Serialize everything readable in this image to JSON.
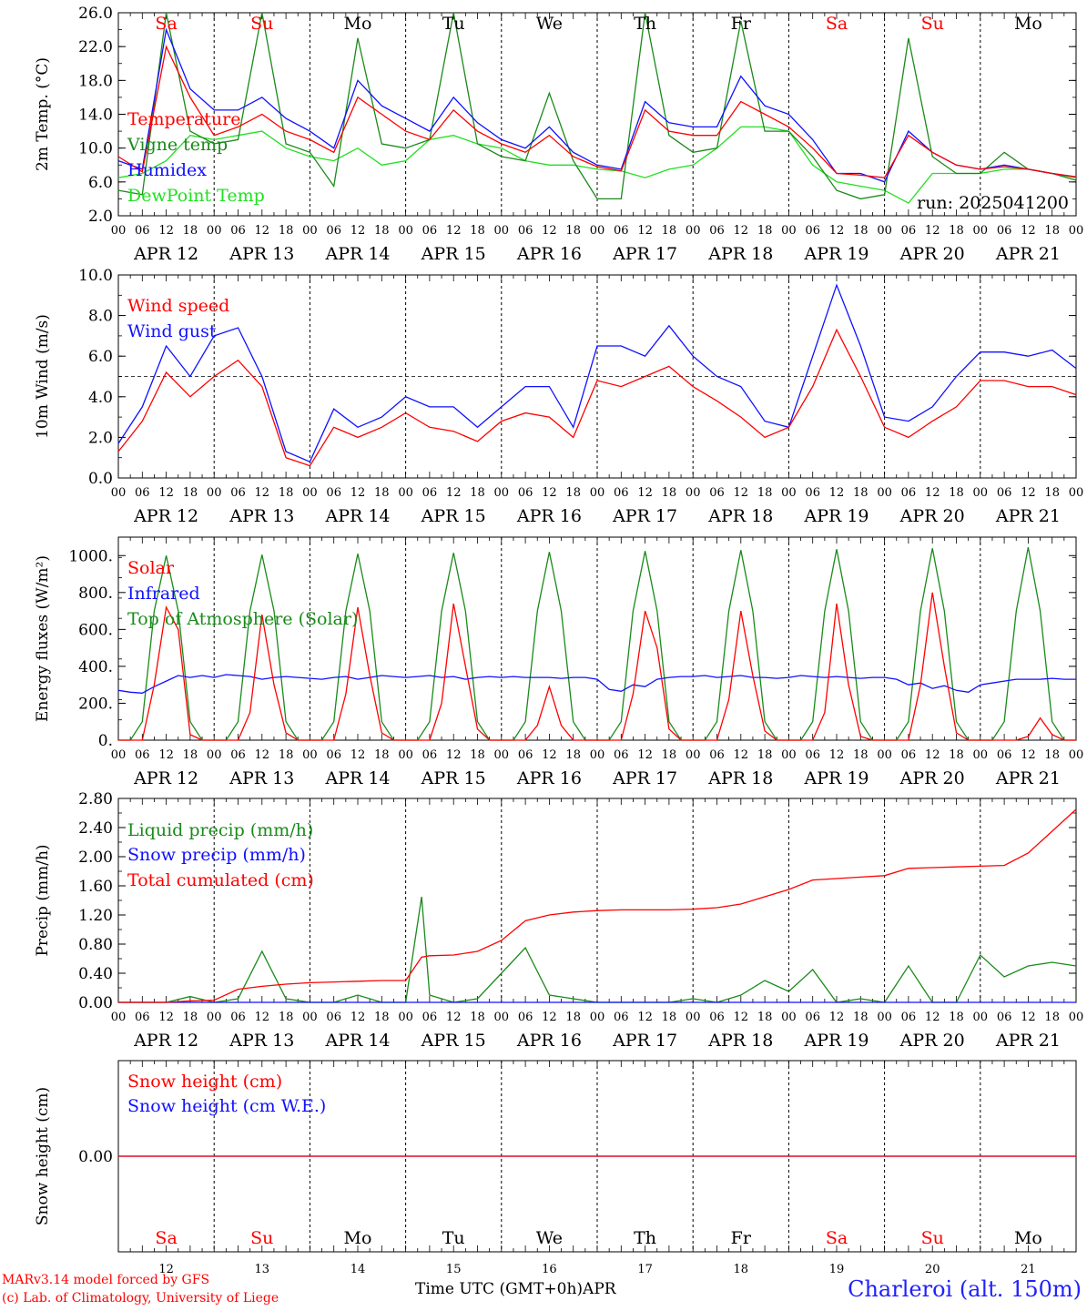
{
  "footer": {
    "model": "MARv3.14 model forced by GFS",
    "credit": "(c) Lab. of Climatology, University of Liege",
    "time_label": "Time UTC (GMT+0h)",
    "month": "APR",
    "station": "Charleroi (alt. 150m)"
  },
  "days": [
    {
      "abbr": "Sa",
      "date": "APR 12",
      "num": "12",
      "weekend": true
    },
    {
      "abbr": "Su",
      "date": "APR 13",
      "num": "13",
      "weekend": true
    },
    {
      "abbr": "Mo",
      "date": "APR 14",
      "num": "14",
      "weekend": false
    },
    {
      "abbr": "Tu",
      "date": "APR 15",
      "num": "15",
      "weekend": false
    },
    {
      "abbr": "We",
      "date": "APR 16",
      "num": "16",
      "weekend": false
    },
    {
      "abbr": "Th",
      "date": "APR 17",
      "num": "17",
      "weekend": false
    },
    {
      "abbr": "Fr",
      "date": "APR 18",
      "num": "18",
      "weekend": false
    },
    {
      "abbr": "Sa",
      "date": "APR 19",
      "num": "19",
      "weekend": true
    },
    {
      "abbr": "Su",
      "date": "APR 20",
      "num": "20",
      "weekend": true
    },
    {
      "abbr": "Mo",
      "date": "APR 21",
      "num": "21",
      "weekend": false
    }
  ],
  "hour_ticks": [
    "00",
    "06",
    "12",
    "18"
  ],
  "colors": {
    "red": "#ff0000",
    "blue": "#1010ff",
    "green": "#1a8a1a",
    "lime": "#20e020",
    "weekend": "#ff0000",
    "weekday": "#000000"
  },
  "chart_data": [
    {
      "type": "line",
      "ylabel": "2m Temp. (°C)",
      "ylim": [
        2,
        26
      ],
      "yticks": [
        "2.0",
        "6.0",
        "10.0",
        "14.0",
        "18.0",
        "22.0",
        "26.0"
      ],
      "annotation": "run: 2025041200",
      "x_hours": [
        0,
        6,
        12,
        18,
        24,
        30,
        36,
        42,
        48,
        54,
        60,
        66,
        72,
        78,
        84,
        90,
        96,
        102,
        108,
        114,
        120,
        126,
        132,
        138,
        144,
        150,
        156,
        162,
        168,
        174,
        180,
        186,
        192,
        198,
        204,
        210,
        216,
        222,
        228,
        234,
        240
      ],
      "series": [
        {
          "name": "Temperature",
          "color": "#ff0000",
          "values": [
            9.0,
            7.2,
            22.0,
            16.0,
            11.5,
            12.5,
            14.0,
            12.0,
            11.0,
            9.5,
            16.0,
            14.0,
            12.0,
            11.0,
            14.5,
            12.0,
            10.5,
            9.5,
            11.5,
            9.0,
            7.8,
            7.3,
            14.5,
            12.0,
            11.5,
            11.5,
            15.5,
            14.0,
            12.5,
            10.0,
            7.0,
            6.8,
            6.5,
            11.5,
            9.5,
            8.0,
            7.5,
            7.8,
            7.5,
            7.0,
            6.6
          ]
        },
        {
          "name": "Vigne temp",
          "color": "#1a8a1a",
          "values": [
            5.0,
            4.5,
            26.0,
            12.0,
            10.5,
            11.0,
            26.0,
            10.5,
            9.5,
            5.5,
            23.0,
            10.5,
            10.0,
            11.0,
            26.0,
            10.5,
            9.0,
            8.5,
            16.5,
            8.5,
            4.0,
            4.0,
            26.0,
            11.5,
            9.5,
            10.0,
            25.0,
            12.0,
            12.0,
            9.0,
            5.0,
            4.0,
            4.5,
            23.0,
            9.0,
            7.0,
            7.0,
            9.5,
            7.5,
            7.0,
            6.2
          ]
        },
        {
          "name": "Humidex",
          "color": "#1010ff",
          "values": [
            8.5,
            7.5,
            24.0,
            17.0,
            14.5,
            14.5,
            16.0,
            13.5,
            12.0,
            10.0,
            18.0,
            15.0,
            13.5,
            12.0,
            16.0,
            13.0,
            11.0,
            10.0,
            12.5,
            9.5,
            8.0,
            7.5,
            15.5,
            13.0,
            12.5,
            12.5,
            18.5,
            15.0,
            14.0,
            11.0,
            7.0,
            7.0,
            6.0,
            12.0,
            9.5,
            8.0,
            7.5,
            8.0,
            7.5,
            7.0,
            6.6
          ]
        },
        {
          "name": "DewPoint Temp",
          "color": "#20e020",
          "values": [
            6.5,
            7.0,
            8.5,
            11.5,
            11.0,
            11.5,
            12.0,
            10.0,
            9.0,
            8.5,
            10.0,
            8.0,
            8.5,
            11.0,
            11.5,
            10.5,
            10.0,
            8.5,
            8.0,
            8.0,
            7.5,
            7.3,
            6.5,
            7.5,
            8.0,
            10.0,
            12.5,
            12.5,
            12.0,
            8.0,
            6.0,
            5.5,
            5.0,
            3.5,
            7.0,
            7.0,
            7.0,
            7.5,
            7.5,
            7.0,
            6.5
          ]
        }
      ]
    },
    {
      "type": "line",
      "ylabel": "10m Wind (m/s)",
      "ylim": [
        0,
        10
      ],
      "yticks": [
        "0.0",
        "2.0",
        "4.0",
        "6.0",
        "8.0",
        "10.0"
      ],
      "reference_line": 5.0,
      "x_hours": [
        0,
        6,
        12,
        18,
        24,
        30,
        36,
        42,
        48,
        54,
        60,
        66,
        72,
        78,
        84,
        90,
        96,
        102,
        108,
        114,
        120,
        126,
        132,
        138,
        144,
        150,
        156,
        162,
        168,
        174,
        180,
        186,
        192,
        198,
        204,
        210,
        216,
        222,
        228,
        234,
        240
      ],
      "series": [
        {
          "name": "Wind speed",
          "color": "#ff0000",
          "values": [
            1.3,
            2.8,
            5.2,
            4.0,
            5.0,
            5.8,
            4.5,
            1.0,
            0.6,
            2.5,
            2.0,
            2.5,
            3.2,
            2.5,
            2.3,
            1.8,
            2.8,
            3.2,
            3.0,
            2.0,
            4.8,
            4.5,
            5.0,
            5.5,
            4.5,
            3.8,
            3.0,
            2.0,
            2.5,
            4.5,
            7.3,
            5.0,
            2.5,
            2.0,
            2.8,
            3.5,
            4.8,
            4.8,
            4.5,
            4.5,
            4.1
          ]
        },
        {
          "name": "Wind gust",
          "color": "#1010ff",
          "values": [
            1.7,
            3.5,
            6.5,
            5.0,
            7.0,
            7.4,
            5.0,
            1.3,
            0.8,
            3.4,
            2.5,
            3.0,
            4.0,
            3.5,
            3.5,
            2.5,
            3.5,
            4.5,
            4.5,
            2.5,
            6.5,
            6.5,
            6.0,
            7.5,
            6.0,
            5.0,
            4.5,
            2.8,
            2.5,
            6.0,
            9.5,
            6.5,
            3.0,
            2.8,
            3.5,
            5.0,
            6.2,
            6.2,
            6.0,
            6.3,
            5.4
          ]
        }
      ]
    },
    {
      "type": "line",
      "ylabel": "Energy fluxes (W/m²)",
      "ylim": [
        0,
        1100
      ],
      "yticks": [
        "0.",
        "200.",
        "400.",
        "600.",
        "800.",
        "1000."
      ],
      "x_hours": [
        0,
        3,
        6,
        9,
        12,
        15,
        18,
        21,
        24,
        27,
        30,
        33,
        36,
        39,
        42,
        45,
        48,
        51,
        54,
        57,
        60,
        63,
        66,
        69,
        72,
        75,
        78,
        81,
        84,
        87,
        90,
        93,
        96,
        99,
        102,
        105,
        108,
        111,
        114,
        117,
        120,
        123,
        126,
        129,
        132,
        135,
        138,
        141,
        144,
        147,
        150,
        153,
        156,
        159,
        162,
        165,
        168,
        171,
        174,
        177,
        180,
        183,
        186,
        189,
        192,
        195,
        198,
        201,
        204,
        207,
        210,
        213,
        216,
        219,
        222,
        225,
        228,
        231,
        234,
        237,
        240
      ],
      "series": [
        {
          "name": "Solar",
          "color": "#ff0000",
          "values": [
            0,
            0,
            0,
            300,
            720,
            600,
            30,
            0,
            0,
            0,
            0,
            150,
            680,
            300,
            40,
            0,
            0,
            0,
            0,
            250,
            720,
            350,
            40,
            0,
            0,
            0,
            0,
            200,
            740,
            400,
            60,
            0,
            0,
            0,
            0,
            80,
            290,
            80,
            0,
            0,
            0,
            0,
            0,
            250,
            700,
            500,
            60,
            0,
            0,
            0,
            0,
            220,
            700,
            350,
            50,
            0,
            0,
            0,
            0,
            150,
            740,
            300,
            20,
            0,
            0,
            0,
            0,
            300,
            800,
            400,
            40,
            0,
            0,
            0,
            0,
            0,
            20,
            120,
            30,
            0,
            0
          ]
        },
        {
          "name": "Infrared",
          "color": "#1010ff",
          "values": [
            270,
            260,
            255,
            290,
            320,
            350,
            340,
            350,
            340,
            355,
            350,
            345,
            330,
            340,
            345,
            340,
            335,
            330,
            340,
            345,
            330,
            340,
            350,
            345,
            340,
            345,
            350,
            340,
            345,
            330,
            340,
            345,
            340,
            345,
            340,
            340,
            340,
            335,
            340,
            340,
            330,
            275,
            265,
            300,
            290,
            330,
            340,
            345,
            345,
            350,
            340,
            345,
            350,
            340,
            340,
            335,
            340,
            350,
            345,
            340,
            345,
            340,
            335,
            340,
            340,
            330,
            300,
            310,
            280,
            295,
            270,
            260,
            300,
            310,
            320,
            330,
            330,
            330,
            335,
            330,
            330
          ]
        },
        {
          "name": "Top of Atmosphere (Solar)",
          "color": "#1a8a1a",
          "values": [
            0,
            0,
            100,
            700,
            1000,
            700,
            100,
            0,
            0,
            0,
            100,
            700,
            1005,
            700,
            100,
            0,
            0,
            0,
            100,
            700,
            1010,
            700,
            100,
            0,
            0,
            0,
            100,
            700,
            1015,
            700,
            100,
            0,
            0,
            0,
            100,
            700,
            1020,
            700,
            100,
            0,
            0,
            0,
            100,
            700,
            1025,
            700,
            100,
            0,
            0,
            0,
            100,
            700,
            1030,
            700,
            100,
            0,
            0,
            0,
            100,
            700,
            1035,
            700,
            100,
            0,
            0,
            0,
            100,
            700,
            1040,
            700,
            100,
            0,
            0,
            0,
            100,
            700,
            1045,
            700,
            100,
            0,
            0
          ]
        }
      ]
    },
    {
      "type": "line",
      "ylabel": "Precip (mm/h)",
      "ylim": [
        0,
        2.8
      ],
      "yticks": [
        "0.00",
        "0.40",
        "0.80",
        "1.20",
        "1.60",
        "2.00",
        "2.40",
        "2.80"
      ],
      "x_hours": [
        0,
        6,
        12,
        18,
        24,
        30,
        36,
        42,
        48,
        54,
        60,
        66,
        72,
        76,
        78,
        84,
        90,
        96,
        102,
        108,
        114,
        120,
        126,
        132,
        138,
        144,
        150,
        156,
        162,
        168,
        174,
        180,
        186,
        192,
        198,
        204,
        210,
        216,
        222,
        228,
        234,
        240
      ],
      "series": [
        {
          "name": "Liquid precip (mm/h)",
          "color": "#1a8a1a",
          "values": [
            0,
            0,
            0,
            0.08,
            0,
            0.05,
            0.7,
            0.05,
            0,
            0,
            0.1,
            0,
            0,
            1.45,
            0.1,
            0,
            0.05,
            0.4,
            0.75,
            0.1,
            0.05,
            0,
            0,
            0,
            0,
            0.05,
            0,
            0.1,
            0.3,
            0.15,
            0.45,
            0,
            0.05,
            0,
            0.5,
            0,
            0,
            0.65,
            0.35,
            0.5,
            0.55,
            0.5
          ]
        },
        {
          "name": "Snow precip (mm/h)",
          "color": "#1010ff",
          "values": [
            0,
            0,
            0,
            0,
            0,
            0,
            0,
            0,
            0,
            0,
            0,
            0,
            0,
            0,
            0,
            0,
            0,
            0,
            0,
            0,
            0,
            0,
            0,
            0,
            0,
            0,
            0,
            0,
            0,
            0,
            0,
            0,
            0,
            0,
            0,
            0,
            0,
            0,
            0,
            0,
            0,
            0
          ]
        },
        {
          "name": "Total cumulated (cm)",
          "color": "#ff0000",
          "values": [
            0,
            0,
            0,
            0.02,
            0.03,
            0.18,
            0.22,
            0.25,
            0.27,
            0.28,
            0.29,
            0.3,
            0.3,
            0.62,
            0.64,
            0.65,
            0.7,
            0.85,
            1.12,
            1.2,
            1.24,
            1.26,
            1.27,
            1.27,
            1.27,
            1.28,
            1.3,
            1.35,
            1.45,
            1.55,
            1.68,
            1.7,
            1.72,
            1.74,
            1.84,
            1.85,
            1.86,
            1.87,
            1.88,
            2.05,
            2.35,
            2.65
          ]
        }
      ]
    },
    {
      "type": "line",
      "ylabel": "Snow height (cm)",
      "yticks": [
        "0.00"
      ],
      "series": [
        {
          "name": "Snow height (cm)",
          "color": "#ff0000",
          "values": [
            0,
            0
          ]
        },
        {
          "name": "Snow height (cm W.E.)",
          "color": "#1010ff",
          "values": [
            0,
            0
          ]
        }
      ]
    }
  ]
}
